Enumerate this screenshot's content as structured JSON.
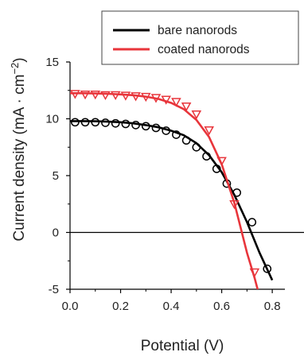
{
  "chart_data": {
    "type": "line",
    "title": "",
    "xlabel": "Potential (V)",
    "ylabel": {
      "base": "Current density (mA · cm",
      "sup": "−2",
      "close": ")"
    },
    "xlim": [
      0.0,
      0.85
    ],
    "ylim": [
      -5,
      15
    ],
    "x_ticks": [
      0.0,
      0.2,
      0.4,
      0.6,
      0.8
    ],
    "x_tick_labels": [
      "0.0",
      "0.2",
      "0.4",
      "0.6",
      "0.8"
    ],
    "y_ticks": [
      -5,
      0,
      5,
      10,
      15
    ],
    "y_tick_labels": [
      "-5",
      "0",
      "5",
      "10",
      "15"
    ],
    "zero_line": true,
    "grid": false,
    "legend": {
      "position": "top-right"
    },
    "series": [
      {
        "name": "bare nanorods",
        "color": "#000000",
        "marker": "circle",
        "fit_x": [
          0.0,
          0.05,
          0.1,
          0.15,
          0.2,
          0.25,
          0.3,
          0.35,
          0.4,
          0.45,
          0.5,
          0.55,
          0.6,
          0.65,
          0.7,
          0.75,
          0.8
        ],
        "fit_y": [
          9.8,
          9.8,
          9.78,
          9.75,
          9.7,
          9.6,
          9.45,
          9.25,
          8.95,
          8.55,
          7.85,
          6.8,
          5.3,
          3.3,
          0.9,
          -1.8,
          -4.2
        ],
        "points_x": [
          0.02,
          0.06,
          0.1,
          0.14,
          0.18,
          0.22,
          0.26,
          0.3,
          0.34,
          0.38,
          0.42,
          0.46,
          0.5,
          0.54,
          0.58,
          0.62,
          0.66,
          0.72,
          0.78
        ],
        "points_y": [
          9.7,
          9.7,
          9.7,
          9.65,
          9.6,
          9.55,
          9.45,
          9.35,
          9.2,
          8.95,
          8.6,
          8.1,
          7.5,
          6.7,
          5.6,
          4.3,
          3.5,
          0.9,
          -3.2
        ]
      },
      {
        "name": "coated nanorods",
        "color": "#e8353b",
        "marker": "triangle-down",
        "fit_x": [
          0.0,
          0.05,
          0.1,
          0.15,
          0.2,
          0.25,
          0.3,
          0.35,
          0.4,
          0.45,
          0.5,
          0.55,
          0.6,
          0.65,
          0.7,
          0.73,
          0.76
        ],
        "fit_y": [
          12.25,
          12.25,
          12.23,
          12.2,
          12.15,
          12.08,
          11.95,
          11.75,
          11.4,
          10.85,
          9.9,
          8.4,
          6.0,
          2.6,
          -1.8,
          -4.0,
          -6.5
        ],
        "points_x": [
          0.02,
          0.06,
          0.1,
          0.14,
          0.18,
          0.22,
          0.26,
          0.3,
          0.34,
          0.38,
          0.42,
          0.46,
          0.5,
          0.55,
          0.6,
          0.65,
          0.73
        ],
        "points_y": [
          12.2,
          12.15,
          12.15,
          12.1,
          12.1,
          12.05,
          12.0,
          11.95,
          11.85,
          11.7,
          11.5,
          11.1,
          10.4,
          9.0,
          6.3,
          2.5,
          -3.5
        ]
      }
    ]
  }
}
